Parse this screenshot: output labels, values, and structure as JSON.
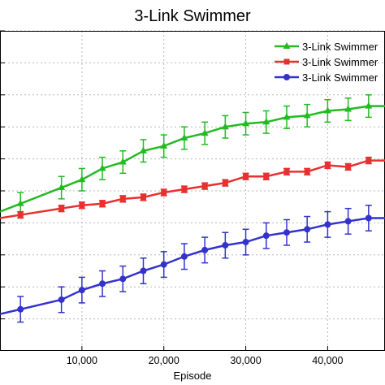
{
  "chart_data": {
    "type": "line",
    "title": "3-Link Swimmer",
    "xlabel": "Episode",
    "ylabel": "",
    "xlim": [
      0,
      47000
    ],
    "ylim": [
      0,
      100
    ],
    "xticks": [
      10000,
      20000,
      30000,
      40000
    ],
    "xtick_labels": [
      "10,000",
      "20,000",
      "30,000",
      "40,000"
    ],
    "yticks": [
      10,
      20,
      30,
      40,
      50,
      60,
      70,
      80,
      90,
      100
    ],
    "grid": true,
    "legend_position": "top-right",
    "series": [
      {
        "name": "3-Link Swimmer",
        "color": "#22bb22",
        "marker": "triangle",
        "x": [
          2500,
          7500,
          10000,
          12500,
          15000,
          17500,
          20000,
          22500,
          25000,
          27500,
          30000,
          32500,
          35000,
          37500,
          40000,
          42500,
          45000
        ],
        "y": [
          46,
          51,
          53.5,
          57,
          59,
          62.5,
          64,
          66.5,
          68,
          70,
          71,
          71.5,
          73,
          73.5,
          75,
          75.5,
          76.5
        ],
        "err": [
          3.5,
          3.5,
          3.5,
          3.5,
          3.5,
          3.5,
          3.5,
          3.5,
          3.5,
          3.5,
          3.5,
          3.5,
          3.5,
          3.5,
          3.5,
          3.5,
          3.5
        ]
      },
      {
        "name": "3-Link Swimmer",
        "color": "#e83030",
        "marker": "square",
        "x": [
          2500,
          7500,
          10000,
          12500,
          15000,
          17500,
          20000,
          22500,
          25000,
          27500,
          30000,
          32500,
          35000,
          37500,
          40000,
          42500,
          45000
        ],
        "y": [
          42.5,
          44.5,
          45.5,
          46,
          47.5,
          48,
          49.5,
          50.5,
          51.5,
          52.5,
          54.5,
          54.5,
          56,
          56,
          58,
          57.5,
          59.5
        ],
        "err": [
          1,
          1,
          1,
          1,
          1,
          1,
          1,
          1,
          1,
          1,
          1,
          1,
          1,
          1,
          1,
          1,
          1
        ]
      },
      {
        "name": "3-Link Swimmer",
        "color": "#3333cc",
        "marker": "circle",
        "x": [
          2500,
          7500,
          10000,
          12500,
          15000,
          17500,
          20000,
          22500,
          25000,
          27500,
          30000,
          32500,
          35000,
          37500,
          40000,
          42500,
          45000
        ],
        "y": [
          13,
          16,
          19,
          21,
          22.5,
          25,
          27,
          29.5,
          31.5,
          33,
          34,
          36,
          37,
          38,
          39.5,
          40.5,
          41.5
        ],
        "err": [
          4,
          4,
          4,
          4,
          4,
          4,
          4,
          4,
          4,
          4,
          4,
          4,
          4,
          4,
          4,
          4,
          4
        ]
      }
    ]
  }
}
